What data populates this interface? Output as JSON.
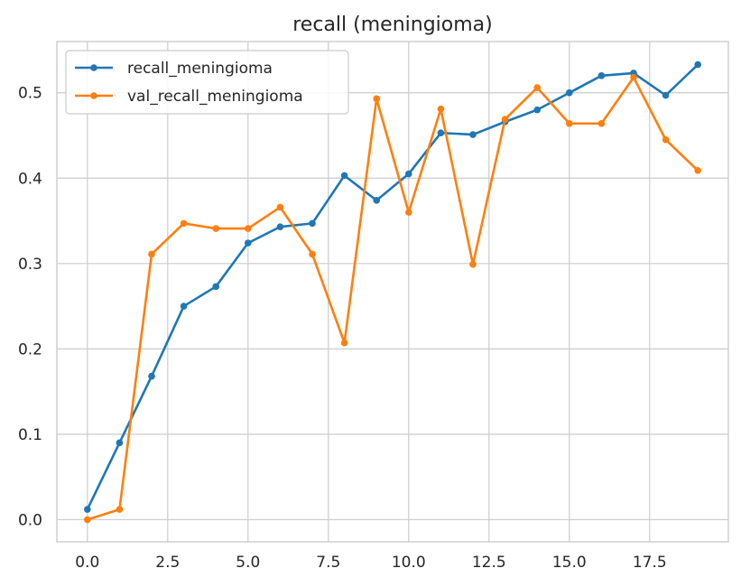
{
  "chart_data": {
    "type": "line",
    "title": "recall (meningioma)",
    "xlabel": "",
    "ylabel": "",
    "xlim": [
      -0.95,
      19.95
    ],
    "ylim": [
      -0.026,
      0.56
    ],
    "x_ticks": [
      0.0,
      2.5,
      5.0,
      7.5,
      10.0,
      12.5,
      15.0,
      17.5
    ],
    "x_tick_labels": [
      "0.0",
      "2.5",
      "5.0",
      "7.5",
      "10.0",
      "12.5",
      "15.0",
      "17.5"
    ],
    "y_ticks": [
      0.0,
      0.1,
      0.2,
      0.3,
      0.4,
      0.5
    ],
    "y_tick_labels": [
      "0.0",
      "0.1",
      "0.2",
      "0.3",
      "0.4",
      "0.5"
    ],
    "grid": true,
    "legend_position": "top-left",
    "x": [
      0,
      1,
      2,
      3,
      4,
      5,
      6,
      7,
      8,
      9,
      10,
      11,
      12,
      13,
      14,
      15,
      16,
      17,
      18,
      19
    ],
    "series": [
      {
        "name": "recall_meningioma",
        "color": "#1f77b4",
        "values": [
          0.012,
          0.09,
          0.168,
          0.25,
          0.273,
          0.324,
          0.343,
          0.347,
          0.403,
          0.374,
          0.405,
          0.453,
          0.451,
          0.466,
          0.48,
          0.5,
          0.52,
          0.523,
          0.497,
          0.533
        ]
      },
      {
        "name": "val_recall_meningioma",
        "color": "#ff7f0e",
        "values": [
          0.0,
          0.012,
          0.311,
          0.347,
          0.341,
          0.341,
          0.366,
          0.311,
          0.207,
          0.493,
          0.36,
          0.481,
          0.299,
          0.469,
          0.506,
          0.464,
          0.464,
          0.518,
          0.445,
          0.409
        ]
      }
    ]
  }
}
